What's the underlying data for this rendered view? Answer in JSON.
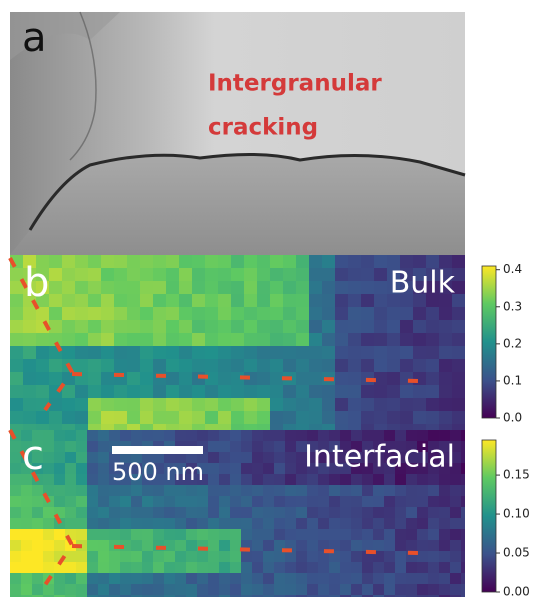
{
  "panels": [
    {
      "label": "a",
      "annotation": [
        "Intergranular",
        "cracking"
      ]
    },
    {
      "label": "b",
      "title": "Bulk",
      "colorbar": {
        "lim": [
          0,
          0.41
        ],
        "ticks": [
          {
            "value": 0,
            "label": "0.0"
          },
          0.1,
          0.2,
          0.3,
          0.4
        ]
      }
    },
    {
      "label": "c",
      "title": "Interfacial",
      "scale_bar": "500 nm",
      "colorbar": {
        "lim": [
          0,
          0.195
        ],
        "ticks": [
          {
            "value": 0,
            "label": "0.00"
          },
          0.05,
          {
            "value": 0.1,
            "label": "0.10"
          },
          0.15
        ]
      }
    }
  ]
}
